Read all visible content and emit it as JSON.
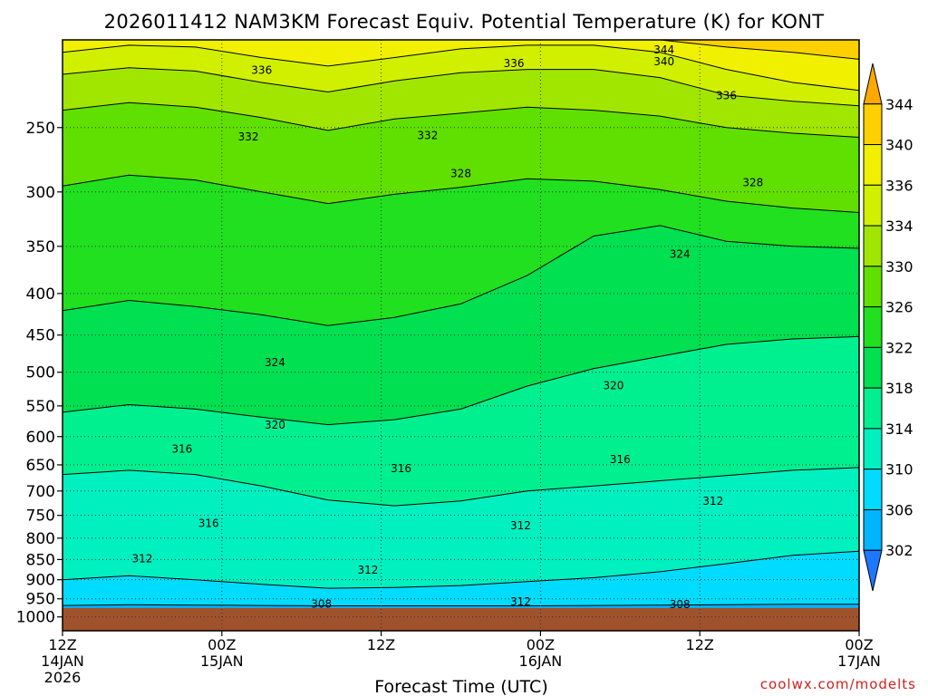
{
  "chart_data": {
    "type": "heatmap",
    "title": "2026011412 NAM3KM Forecast Equiv. Potential Temperature (K) for KONT",
    "xlabel": "Forecast Time (UTC)",
    "ylabel": "",
    "y_scale": "log pressure (hPa), inverted",
    "ylim": [
      1040,
      195
    ],
    "y_ticks": [
      250,
      300,
      350,
      400,
      450,
      500,
      550,
      600,
      650,
      700,
      750,
      800,
      850,
      900,
      950,
      1000
    ],
    "x_ticks": [
      {
        "hour": 0,
        "l1": "12Z",
        "l2": "14JAN",
        "l3": "2026"
      },
      {
        "hour": 12,
        "l1": "00Z",
        "l2": "15JAN",
        "l3": ""
      },
      {
        "hour": 24,
        "l1": "12Z",
        "l2": "",
        "l3": ""
      },
      {
        "hour": 36,
        "l1": "00Z",
        "l2": "16JAN",
        "l3": ""
      },
      {
        "hour": 48,
        "l1": "12Z",
        "l2": "",
        "l3": ""
      },
      {
        "hour": 60,
        "l1": "00Z",
        "l2": "17JAN",
        "l3": ""
      }
    ],
    "xlim": [
      0,
      60
    ],
    "surface_pressure_hPa": 975,
    "grid": true,
    "contour_interval_K": 2,
    "contour_labels": [
      {
        "hour": 45.3,
        "p": 200.5,
        "text": "344"
      },
      {
        "hour": 45.3,
        "p": 207.3,
        "text": "340"
      },
      {
        "hour": 15,
        "p": 212.5,
        "text": "336"
      },
      {
        "hour": 34,
        "p": 208.5,
        "text": "336"
      },
      {
        "hour": 50,
        "p": 228.5,
        "text": "336"
      },
      {
        "hour": 14,
        "p": 256.6,
        "text": "332"
      },
      {
        "hour": 27.5,
        "p": 255.7,
        "text": "332"
      },
      {
        "hour": 30,
        "p": 284.9,
        "text": "328"
      },
      {
        "hour": 52,
        "p": 292,
        "text": "328"
      },
      {
        "hour": 46.5,
        "p": 358,
        "text": "324"
      },
      {
        "hour": 16,
        "p": 486.5,
        "text": "324"
      },
      {
        "hour": 41.5,
        "p": 519,
        "text": "320"
      },
      {
        "hour": 16,
        "p": 581,
        "text": "320"
      },
      {
        "hour": 9,
        "p": 621.5,
        "text": "316"
      },
      {
        "hour": 25.5,
        "p": 657,
        "text": "316"
      },
      {
        "hour": 42,
        "p": 640.5,
        "text": "316"
      },
      {
        "hour": 11,
        "p": 767,
        "text": "316"
      },
      {
        "hour": 6,
        "p": 848,
        "text": "312"
      },
      {
        "hour": 23,
        "p": 875.5,
        "text": "312"
      },
      {
        "hour": 34.5,
        "p": 772.5,
        "text": "312"
      },
      {
        "hour": 49,
        "p": 720.5,
        "text": "312"
      },
      {
        "hour": 34.5,
        "p": 957.5,
        "text": "312"
      },
      {
        "hour": 19.5,
        "p": 964,
        "text": "308"
      },
      {
        "hour": 46.5,
        "p": 965,
        "text": "308"
      }
    ],
    "band_levels_K": [
      344,
      340,
      336,
      334,
      330,
      326,
      322,
      318,
      314,
      310,
      306
    ],
    "band_top_pressure_hPa": [
      [
        195,
        195,
        195,
        195,
        195,
        195,
        195,
        195,
        195,
        195,
        195,
        195,
        195
      ],
      [
        195,
        195,
        195,
        195,
        195,
        195,
        195,
        195,
        195,
        195,
        199,
        202,
        206
      ],
      [
        202,
        198,
        199,
        205,
        210,
        205,
        200,
        198,
        198,
        202,
        212,
        220,
        225
      ],
      [
        215,
        211,
        213,
        220,
        226,
        219,
        214,
        212,
        212,
        217,
        228,
        232,
        235
      ],
      [
        238,
        233,
        236,
        243,
        252,
        244,
        240,
        236,
        238,
        242,
        250,
        254,
        257
      ],
      [
        295,
        286,
        290,
        300,
        310,
        302,
        296,
        289,
        291,
        298,
        308,
        314,
        318
      ],
      [
        420,
        408,
        415,
        425,
        438,
        428,
        412,
        380,
        340,
        330,
        345,
        350,
        352
      ],
      [
        560,
        548,
        555,
        568,
        580,
        572,
        555,
        520,
        495,
        478,
        462,
        455,
        452
      ],
      [
        668,
        660,
        668,
        690,
        718,
        730,
        720,
        700,
        690,
        680,
        670,
        660,
        655
      ],
      [
        900,
        890,
        900,
        912,
        922,
        920,
        915,
        905,
        895,
        880,
        860,
        840,
        830
      ],
      [
        968,
        966,
        967,
        968,
        969,
        969,
        969,
        969,
        968,
        967,
        966,
        965,
        965
      ]
    ],
    "colorbar": {
      "levels": [
        302,
        306,
        310,
        314,
        318,
        322,
        326,
        330,
        334,
        336,
        340,
        344
      ],
      "colors": [
        "#1e78ff",
        "#00b4ff",
        "#00dcff",
        "#00f0c0",
        "#00f090",
        "#00e050",
        "#20e020",
        "#60e000",
        "#a0e600",
        "#d0f000",
        "#f0f000",
        "#ffd000",
        "#ffa800"
      ]
    },
    "surface_color": "#a0522d"
  },
  "credit": "coolwx.com/modelts"
}
